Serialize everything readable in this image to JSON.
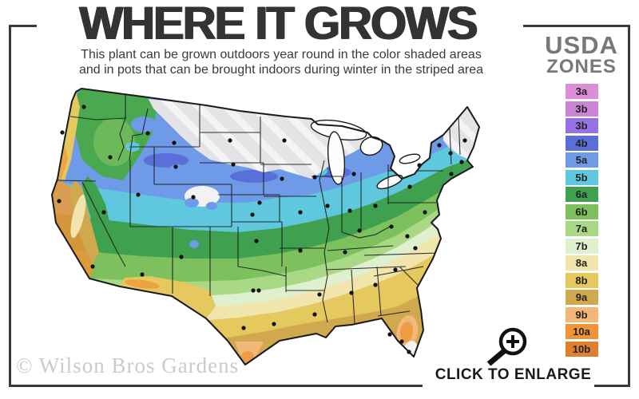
{
  "header": {
    "title": "WHERE IT GROWS",
    "subtitle_line1": "This plant can be grown outdoors year round in the color shaded areas",
    "subtitle_line2": "and in pots that can be brought indoors during winter in the striped area"
  },
  "legend": {
    "title_line1": "USDA",
    "title_line2": "ZONES",
    "zones": [
      {
        "label": "3a",
        "color": "#DC8FD8"
      },
      {
        "label": "3b",
        "color": "#CC84D6"
      },
      {
        "label": "3b",
        "color": "#9573E3"
      },
      {
        "label": "4b",
        "color": "#5A70D8"
      },
      {
        "label": "5a",
        "color": "#6F9AE8"
      },
      {
        "label": "5b",
        "color": "#5FC8DE"
      },
      {
        "label": "6a",
        "color": "#3FA04F"
      },
      {
        "label": "6b",
        "color": "#7CC15E"
      },
      {
        "label": "7a",
        "color": "#A9D984"
      },
      {
        "label": "7b",
        "color": "#DFF0CF"
      },
      {
        "label": "8a",
        "color": "#F0E5AD"
      },
      {
        "label": "8b",
        "color": "#E5C85E"
      },
      {
        "label": "9a",
        "color": "#D0A94F"
      },
      {
        "label": "9b",
        "color": "#F2B878"
      },
      {
        "label": "10a",
        "color": "#F09437"
      },
      {
        "label": "10b",
        "color": "#E0802F"
      }
    ]
  },
  "map": {
    "watermark": "© Wilson Bros Gardens",
    "striped_zone_color": "#E4E4E6",
    "outline_color": "#1A1A1A",
    "not_hardy_color": "#F4F4F4"
  },
  "footer": {
    "enlarge_label": "CLICK TO ENLARGE"
  }
}
